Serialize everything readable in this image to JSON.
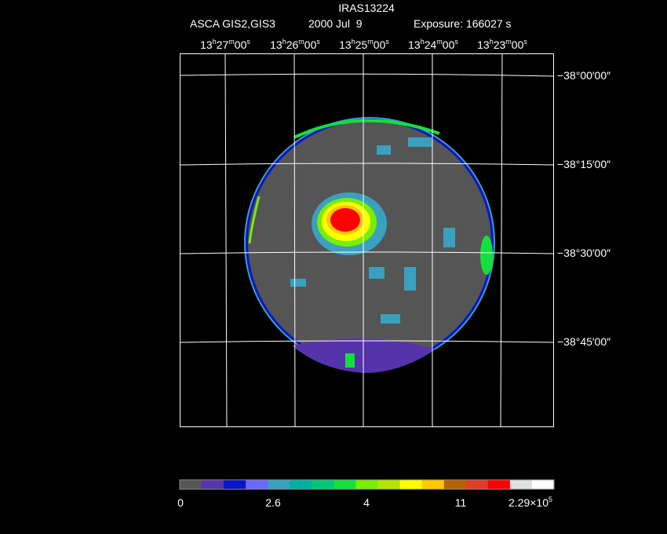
{
  "header": {
    "object": "IRAS13224",
    "instrument": "ASCA GIS2,GIS3",
    "date": "2000 Jul  9",
    "exposure": "Exposure: 166027 s"
  },
  "ra_labels": [
    [
      "13",
      "h",
      "27",
      "m",
      "00",
      "s"
    ],
    [
      "13",
      "h",
      "26",
      "m",
      "00",
      "s"
    ],
    [
      "13",
      "h",
      "25",
      "m",
      "00",
      "s"
    ],
    [
      "13",
      "h",
      "24",
      "m",
      "00",
      "s"
    ],
    [
      "13",
      "h",
      "23",
      "m",
      "00",
      "s"
    ]
  ],
  "dec_labels": [
    "−38°00′00″",
    "−38°15′00″",
    "−38°30′00″",
    "−38°45′00″"
  ],
  "colorbar": {
    "colors": [
      "#555555",
      "#5533aa",
      "#0a14c8",
      "#6a6aff",
      "#3aa0c0",
      "#00b0a0",
      "#00c878",
      "#14e03c",
      "#78ee00",
      "#b4e600",
      "#ffff00",
      "#ffc800",
      "#b46400",
      "#e03c28",
      "#ff0000",
      "#e0e0e0",
      "#ffffff"
    ],
    "labels": [
      [
        "0"
      ],
      [
        "2.6"
      ],
      [
        "4"
      ],
      [
        "11"
      ],
      [
        "2.29×10",
        "5"
      ]
    ]
  }
}
